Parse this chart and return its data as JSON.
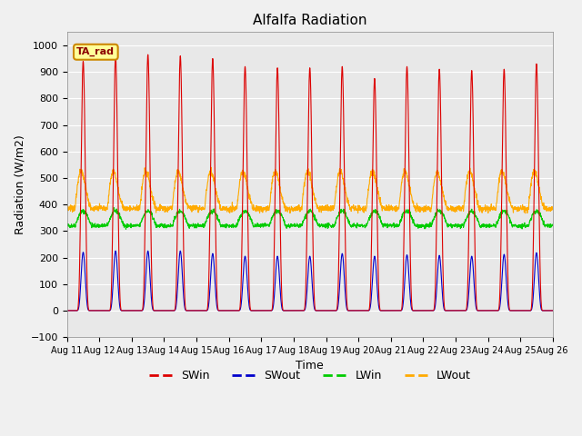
{
  "title": "Alfalfa Radiation",
  "xlabel": "Time",
  "ylabel": "Radiation (W/m2)",
  "ylim": [
    -100,
    1050
  ],
  "yticks": [
    -100,
    0,
    100,
    200,
    300,
    400,
    500,
    600,
    700,
    800,
    900,
    1000
  ],
  "start_day": 11,
  "end_day": 26,
  "n_days": 15,
  "points_per_day": 144,
  "swin_peaks": [
    940,
    960,
    965,
    960,
    950,
    920,
    915,
    915,
    920,
    875,
    920,
    910,
    905,
    910,
    930
  ],
  "swout_peaks": [
    220,
    225,
    225,
    225,
    215,
    205,
    205,
    205,
    215,
    205,
    210,
    208,
    205,
    212,
    218
  ],
  "lwin_base": 320,
  "lwout_base": 385,
  "lwin_day_amp": 55,
  "lwout_day_amp": 160,
  "colors": {
    "SWin": "#dd0000",
    "SWout": "#0000cc",
    "LWin": "#00cc00",
    "LWout": "#ffaa00"
  },
  "fig_bg_color": "#f0f0f0",
  "plot_bg_color": "#e8e8e8",
  "annotation_text": "TA_rad",
  "annotation_bg": "#ffff99",
  "annotation_border": "#cc8800",
  "grid_color": "#ffffff",
  "legend_items": [
    "SWin",
    "SWout",
    "LWin",
    "LWout"
  ]
}
